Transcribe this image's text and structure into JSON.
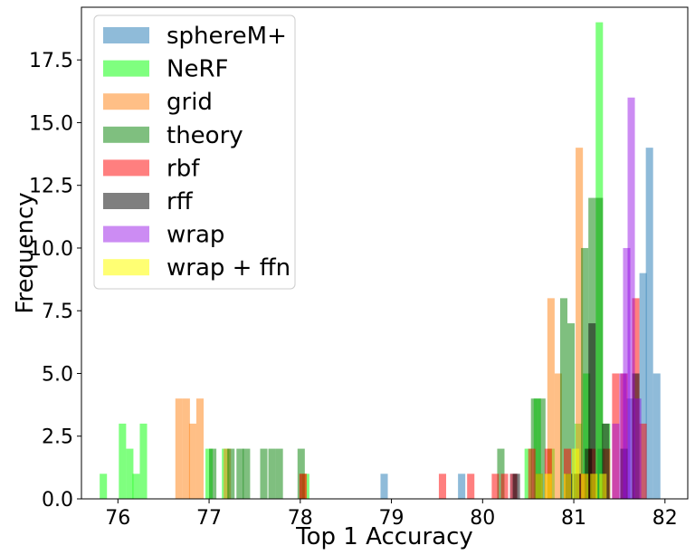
{
  "chart_data": {
    "type": "bar",
    "title": "",
    "xlabel": "Top 1 Accuracy",
    "ylabel": "Frequency",
    "xlim": [
      75.6,
      82.25
    ],
    "ylim": [
      0,
      19.6
    ],
    "xticks": [
      76,
      77,
      78,
      79,
      80,
      81,
      82
    ],
    "yticks": [
      0.0,
      2.5,
      5.0,
      7.5,
      10.0,
      12.5,
      15.0,
      17.5
    ],
    "grid": false,
    "legend_position": "top-left",
    "bin_width": 0.08,
    "series": [
      {
        "name": "sphereM+",
        "color": "#1f77b4",
        "opacity": 0.5,
        "bins": [
          {
            "x": 78.92,
            "y": 1
          },
          {
            "x": 79.77,
            "y": 1
          },
          {
            "x": 80.34,
            "y": 1
          },
          {
            "x": 81.3,
            "y": 2
          },
          {
            "x": 81.62,
            "y": 4
          },
          {
            "x": 81.76,
            "y": 9
          },
          {
            "x": 81.83,
            "y": 14
          },
          {
            "x": 81.91,
            "y": 5
          }
        ]
      },
      {
        "name": "NeRF",
        "color": "#00ff00",
        "opacity": 0.5,
        "bins": [
          {
            "x": 75.84,
            "y": 1
          },
          {
            "x": 75.92,
            "y": 0
          },
          {
            "x": 76.05,
            "y": 3
          },
          {
            "x": 76.13,
            "y": 2
          },
          {
            "x": 76.2,
            "y": 1
          },
          {
            "x": 76.28,
            "y": 3
          },
          {
            "x": 77.0,
            "y": 2
          },
          {
            "x": 77.18,
            "y": 2
          },
          {
            "x": 78.06,
            "y": 1
          },
          {
            "x": 80.5,
            "y": 2
          },
          {
            "x": 80.6,
            "y": 4
          },
          {
            "x": 80.75,
            "y": 2
          },
          {
            "x": 81.05,
            "y": 3
          },
          {
            "x": 81.14,
            "y": 5
          },
          {
            "x": 81.28,
            "y": 19
          },
          {
            "x": 81.36,
            "y": 3
          }
        ]
      },
      {
        "name": "grid",
        "color": "#ff7f0e",
        "opacity": 0.5,
        "bins": [
          {
            "x": 76.67,
            "y": 4
          },
          {
            "x": 76.75,
            "y": 4
          },
          {
            "x": 76.82,
            "y": 3
          },
          {
            "x": 76.9,
            "y": 4
          },
          {
            "x": 77.2,
            "y": 2
          },
          {
            "x": 78.03,
            "y": 1
          },
          {
            "x": 80.75,
            "y": 8
          },
          {
            "x": 80.83,
            "y": 5
          },
          {
            "x": 81.06,
            "y": 14
          },
          {
            "x": 81.14,
            "y": 1
          },
          {
            "x": 81.22,
            "y": 1
          }
        ]
      },
      {
        "name": "theory",
        "color": "#008000",
        "opacity": 0.5,
        "bins": [
          {
            "x": 77.04,
            "y": 2
          },
          {
            "x": 77.24,
            "y": 2
          },
          {
            "x": 77.34,
            "y": 2
          },
          {
            "x": 77.41,
            "y": 2
          },
          {
            "x": 77.6,
            "y": 2
          },
          {
            "x": 77.69,
            "y": 2
          },
          {
            "x": 77.77,
            "y": 2
          },
          {
            "x": 78.01,
            "y": 2
          },
          {
            "x": 80.2,
            "y": 2
          },
          {
            "x": 80.57,
            "y": 4
          },
          {
            "x": 80.65,
            "y": 4
          },
          {
            "x": 80.89,
            "y": 8
          },
          {
            "x": 80.97,
            "y": 7
          },
          {
            "x": 81.12,
            "y": 10
          },
          {
            "x": 81.2,
            "y": 12
          },
          {
            "x": 81.28,
            "y": 12
          }
        ]
      },
      {
        "name": "rbf",
        "color": "#ff0000",
        "opacity": 0.5,
        "bins": [
          {
            "x": 78.03,
            "y": 1
          },
          {
            "x": 79.56,
            "y": 1
          },
          {
            "x": 79.87,
            "y": 1
          },
          {
            "x": 80.14,
            "y": 1
          },
          {
            "x": 80.24,
            "y": 1
          },
          {
            "x": 80.34,
            "y": 1
          },
          {
            "x": 80.54,
            "y": 2
          },
          {
            "x": 80.72,
            "y": 2
          },
          {
            "x": 80.93,
            "y": 2
          },
          {
            "x": 81.1,
            "y": 1
          },
          {
            "x": 81.2,
            "y": 2
          },
          {
            "x": 81.36,
            "y": 2
          },
          {
            "x": 81.46,
            "y": 5
          },
          {
            "x": 81.55,
            "y": 5
          },
          {
            "x": 81.68,
            "y": 8
          },
          {
            "x": 81.76,
            "y": 3
          }
        ]
      },
      {
        "name": "rff",
        "color": "#000000",
        "opacity": 0.5,
        "bins": [
          {
            "x": 80.37,
            "y": 1
          },
          {
            "x": 80.62,
            "y": 1
          },
          {
            "x": 80.95,
            "y": 1
          },
          {
            "x": 81.04,
            "y": 1
          },
          {
            "x": 81.16,
            "y": 2
          },
          {
            "x": 81.2,
            "y": 7
          },
          {
            "x": 81.35,
            "y": 3
          },
          {
            "x": 81.55,
            "y": 2
          },
          {
            "x": 81.68,
            "y": 5
          }
        ]
      },
      {
        "name": "wrap",
        "color": "#8e00e5",
        "opacity": 0.45,
        "bins": [
          {
            "x": 81.46,
            "y": 3
          },
          {
            "x": 81.54,
            "y": 5
          },
          {
            "x": 81.58,
            "y": 10
          },
          {
            "x": 81.63,
            "y": 16
          },
          {
            "x": 81.7,
            "y": 4
          }
        ]
      },
      {
        "name": "wrap + ffn",
        "color": "#ffff00",
        "opacity": 0.55,
        "bins": [
          {
            "x": 80.62,
            "y": 1
          },
          {
            "x": 80.72,
            "y": 1
          },
          {
            "x": 80.93,
            "y": 1
          },
          {
            "x": 81.02,
            "y": 2
          },
          {
            "x": 81.12,
            "y": 1
          },
          {
            "x": 81.22,
            "y": 1
          },
          {
            "x": 81.32,
            "y": 1
          }
        ]
      }
    ]
  }
}
